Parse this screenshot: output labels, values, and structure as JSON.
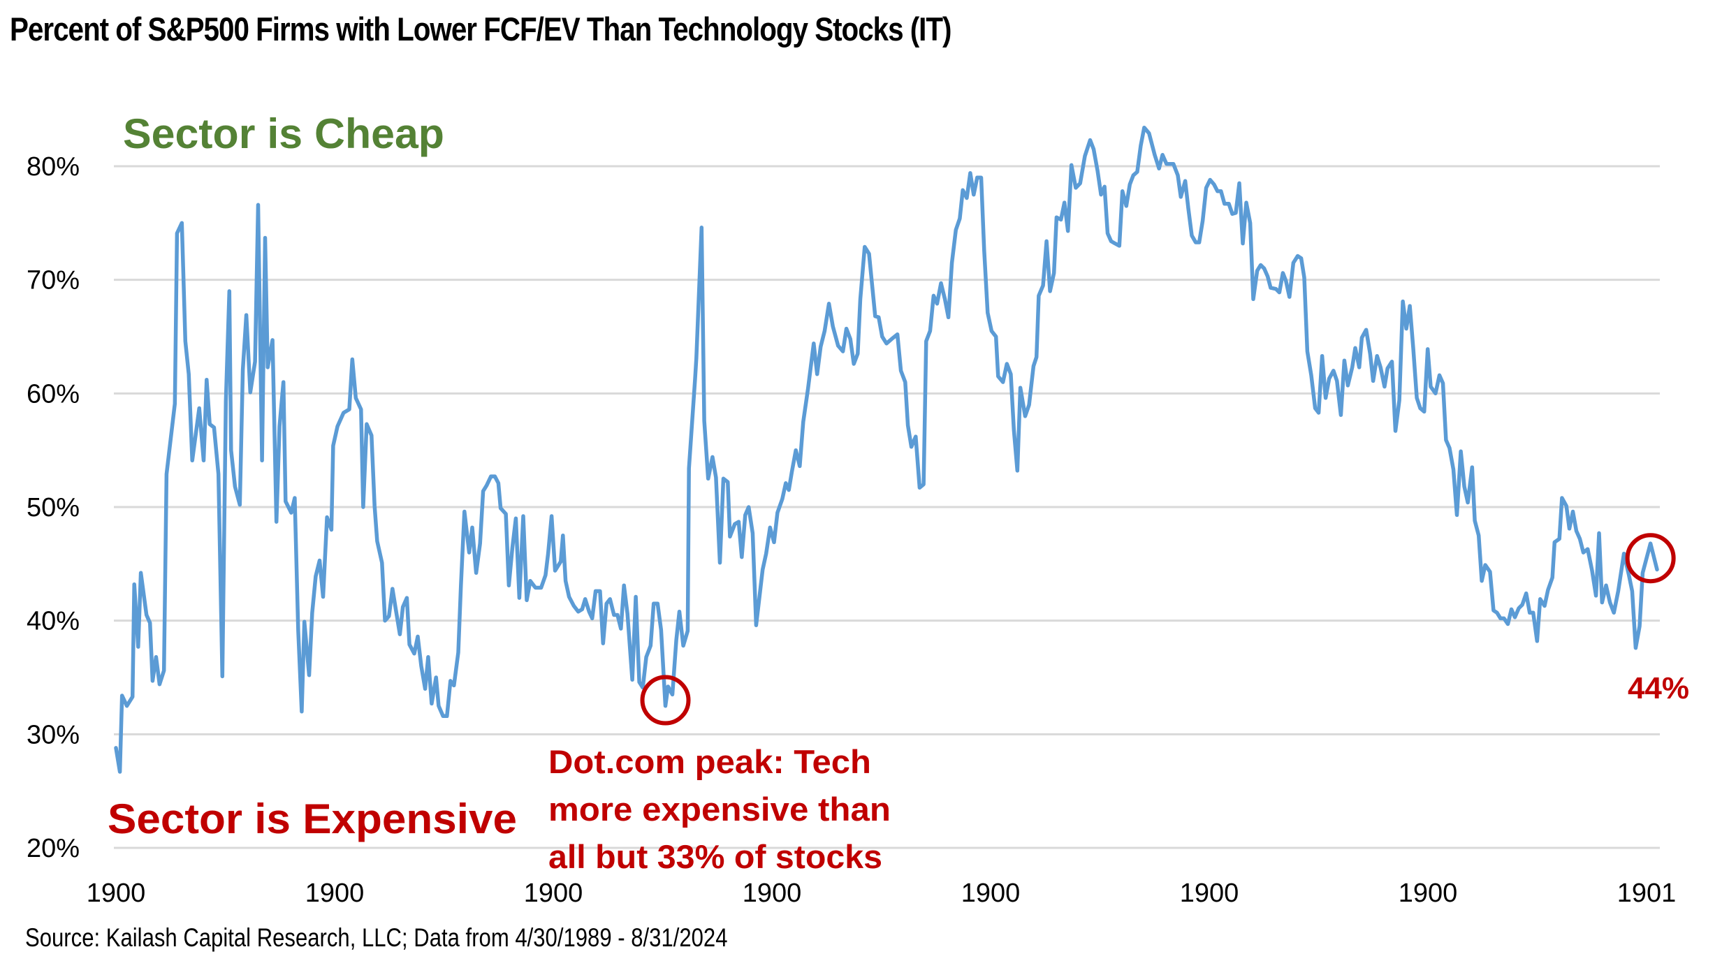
{
  "chart_data": {
    "type": "line",
    "title": "Percent of S&P500 Firms with Lower FCF/EV Than Technology Stocks (IT)",
    "source": "Source: Kailash Capital Research, LLC; Data from 4/30/1989 - 8/31/2024",
    "xlabel": "",
    "ylabel": "",
    "ylim": [
      20,
      80
    ],
    "xlim": [
      1989.33,
      2024.67
    ],
    "yticks": [
      20,
      30,
      40,
      50,
      60,
      70,
      80
    ],
    "ytick_labels": [
      "20%",
      "30%",
      "40%",
      "50%",
      "60%",
      "70%",
      "80%"
    ],
    "xtick_labels": [
      "1900",
      "1900",
      "1900",
      "1900",
      "1900",
      "1900",
      "1900",
      "1901"
    ],
    "grid": "horizontal",
    "legend": "none",
    "series": [
      {
        "name": "Percent of S&P500 firms with lower FCF/EV than IT",
        "color": "#5B9BD5",
        "x": [
          1989.33,
          1989.42,
          1989.47,
          1989.58,
          1989.71,
          1989.75,
          1989.84,
          1989.9,
          1990.03,
          1990.11,
          1990.17,
          1990.25,
          1990.33,
          1990.43,
          1990.49,
          1990.68,
          1990.73,
          1990.84,
          1990.92,
          1991.0,
          1991.08,
          1991.24,
          1991.34,
          1991.41,
          1991.48,
          1991.58,
          1991.68,
          1991.77,
          1991.85,
          1991.93,
          1991.97,
          1992.06,
          1992.17,
          1992.24,
          1992.32,
          1992.41,
          1992.52,
          1992.59,
          1992.68,
          1992.75,
          1992.81,
          1992.92,
          1993.01,
          1993.08,
          1993.17,
          1993.22,
          1993.35,
          1993.43,
          1993.51,
          1993.59,
          1993.65,
          1993.76,
          1993.83,
          1993.91,
          1994.0,
          1994.08,
          1994.17,
          1994.27,
          1994.31,
          1994.41,
          1994.55,
          1994.68,
          1994.75,
          1994.83,
          1994.95,
          1995.0,
          1995.08,
          1995.19,
          1995.26,
          1995.32,
          1995.43,
          1995.5,
          1995.59,
          1995.67,
          1995.75,
          1995.84,
          1995.91,
          1996.0,
          1996.06,
          1996.17,
          1996.25,
          1996.33,
          1996.42,
          1996.49,
          1996.57,
          1996.67,
          1996.73,
          1996.83,
          1996.92,
          1997.0,
          1997.08,
          1997.18,
          1997.24,
          1997.32,
          1997.43,
          1997.5,
          1997.59,
          1997.68,
          1997.75,
          1997.83,
          1997.93,
          1998.02,
          1998.1,
          1998.15,
          1998.27,
          1998.34,
          1998.42,
          1998.5,
          1998.58,
          1998.67,
          1998.75,
          1998.83,
          1998.95,
          1999.08,
          1999.18,
          1999.24,
          1999.32,
          1999.4,
          1999.53,
          1999.58,
          1999.64,
          1999.72,
          1999.83,
          1999.93,
          2000.02,
          2000.09,
          2000.18,
          2000.25,
          2000.33,
          2000.43,
          2000.5,
          2000.58,
          2000.66,
          2000.75,
          2000.83,
          2000.91,
          2000.98,
          2001.06,
          2001.17,
          2001.25,
          2001.33,
          2001.41,
          2001.49,
          2001.59,
          2001.66,
          2001.75,
          2001.83,
          2001.93,
          2001.99,
          2002.09,
          2002.18,
          2002.25,
          2002.34,
          2002.44,
          2002.47,
          2002.61,
          2002.64,
          2002.76,
          2002.82,
          2002.91,
          2003.01,
          2003.09,
          2003.18,
          2003.26,
          2003.36,
          2003.41,
          2003.52,
          2003.61,
          2003.68,
          2003.76,
          2003.84,
          2003.93,
          2004.01,
          2004.16,
          2004.24,
          2004.33,
          2004.42,
          2004.5,
          2004.61,
          2004.69,
          2004.76,
          2004.83,
          2004.92,
          2005.01,
          2005.09,
          2005.2,
          2005.33,
          2005.41,
          2005.49,
          2005.58,
          2005.68,
          2005.77,
          2005.89,
          2006.0,
          2006.08,
          2006.17,
          2006.25,
          2006.34,
          2006.4,
          2006.5,
          2006.6,
          2006.74,
          2006.82,
          2006.9,
          2007.0,
          2007.12,
          2007.25,
          2007.33,
          2007.43,
          2007.49,
          2007.57,
          2007.67,
          2007.76,
          2007.85,
          2007.91,
          2008.0,
          2008.08,
          2008.16,
          2008.25,
          2008.34,
          2008.42,
          2008.5,
          2008.59,
          2008.68,
          2008.75,
          2008.84,
          2008.92,
          2009.0,
          2009.08,
          2009.17,
          2009.24,
          2009.32,
          2009.41,
          2009.51,
          2009.56,
          2009.67,
          2009.76,
          2009.85,
          2009.92,
          2010.0,
          2010.07,
          2010.18,
          2010.27,
          2010.37,
          2010.44,
          2010.49,
          2010.59,
          2010.67,
          2010.75,
          2010.84,
          2010.9,
          2011.0,
          2011.08,
          2011.16,
          2011.24,
          2011.34,
          2011.44,
          2011.55,
          2011.67,
          2011.75,
          2011.84,
          2011.92,
          2012.0,
          2012.07,
          2012.15,
          2012.24,
          2012.34,
          2012.41,
          2012.5,
          2012.58,
          2012.66,
          2012.75,
          2012.83,
          2012.91,
          2013.02,
          2013.15,
          2013.25,
          2013.33,
          2013.42,
          2013.58,
          2013.68,
          2013.75,
          2013.85,
          2013.92,
          2014.0,
          2014.09,
          2014.17,
          2014.25,
          2014.33,
          2014.42,
          2014.51,
          2014.59,
          2014.67,
          2014.75,
          2014.85,
          2014.93,
          2015.01,
          2015.09,
          2015.17,
          2015.25,
          2015.34,
          2015.41,
          2015.5,
          2015.58,
          2015.66,
          2015.74,
          2015.81,
          2015.93,
          2016.01,
          2016.09,
          2016.16,
          2016.24,
          2016.33,
          2016.43,
          2016.51,
          2016.58,
          2016.65,
          2016.74,
          2016.83,
          2016.91,
          2016.99,
          2017.07,
          2017.15,
          2017.25,
          2017.33,
          2017.42,
          2017.5,
          2017.58,
          2017.68,
          2017.75,
          2017.84,
          2017.9,
          2018.0,
          2018.09,
          2018.16,
          2018.25,
          2018.33,
          2018.42,
          2018.49,
          2018.59,
          2018.67,
          2018.76,
          2018.84,
          2018.92,
          2019.0,
          2019.08,
          2019.16,
          2019.24,
          2019.33,
          2019.41,
          2019.48,
          2019.59,
          2019.68,
          2019.76,
          2019.83,
          2019.91,
          2020.0,
          2020.08,
          2020.17,
          2020.25,
          2020.33,
          2020.43,
          2020.49,
          2020.58,
          2020.65,
          2020.73,
          2020.84,
          2020.92,
          2021.0,
          2021.08,
          2021.16,
          2021.25,
          2021.33,
          2021.41,
          2021.5,
          2021.58,
          2021.67,
          2021.75,
          2021.83,
          2021.92,
          2021.99,
          2022.09,
          2022.17,
          2022.27,
          2022.32,
          2022.43,
          2022.49,
          2022.59,
          2022.66,
          2022.74,
          2022.82,
          2022.9,
          2022.98,
          2023.08,
          2023.18,
          2023.27,
          2023.34,
          2023.41,
          2023.5,
          2023.59,
          2023.68,
          2023.78,
          2023.91,
          2024.02,
          2024.1,
          2024.18,
          2024.27,
          2024.34,
          2024.52,
          2024.67
        ],
        "values": [
          28.8,
          26.7,
          33.4,
          32.5,
          33.3,
          43.2,
          37.7,
          44.2,
          40.5,
          39.8,
          34.7,
          36.8,
          34.4,
          35.6,
          52.9,
          59.1,
          74.1,
          75.0,
          64.6,
          61.7,
          54.1,
          58.7,
          54.1,
          61.2,
          57.3,
          57.0,
          52.9,
          35.1,
          59.3,
          69.0,
          55.0,
          51.8,
          50.2,
          62.1,
          66.9,
          60.1,
          62.8,
          76.6,
          54.1,
          73.7,
          62.3,
          64.7,
          48.7,
          57.1,
          61.0,
          50.5,
          49.5,
          50.8,
          39.1,
          32.0,
          39.9,
          35.2,
          40.7,
          43.9,
          45.3,
          42.1,
          49.1,
          48.0,
          55.4,
          57.1,
          58.3,
          58.6,
          63.0,
          59.6,
          58.6,
          50.0,
          57.3,
          56.3,
          50.1,
          47.0,
          45.1,
          40.0,
          40.4,
          42.8,
          40.9,
          38.8,
          41.2,
          42.0,
          37.9,
          37.1,
          38.6,
          36.0,
          34.0,
          36.8,
          32.7,
          35.0,
          32.5,
          31.6,
          31.6,
          34.7,
          34.3,
          37.2,
          43.1,
          49.6,
          46.0,
          48.2,
          44.2,
          46.8,
          51.4,
          51.9,
          52.7,
          52.7,
          52.1,
          49.9,
          49.4,
          43.1,
          46.4,
          49.0,
          42.0,
          49.2,
          41.8,
          43.5,
          42.9,
          42.9,
          44.0,
          45.9,
          49.2,
          44.4,
          45.2,
          47.5,
          43.5,
          42.1,
          41.3,
          40.8,
          41.0,
          41.9,
          40.8,
          40.2,
          42.6,
          42.6,
          38.0,
          41.5,
          41.9,
          40.5,
          40.5,
          39.3,
          43.1,
          40.6,
          34.8,
          42.1,
          34.6,
          34.1,
          36.8,
          37.8,
          41.5,
          41.5,
          39.2,
          32.5,
          34.2,
          33.5,
          38.3,
          40.8,
          37.8,
          39.1,
          53.4,
          61.3,
          63.1,
          74.6,
          57.6,
          52.5,
          54.4,
          52.6,
          45.1,
          52.5,
          52.2,
          47.4,
          48.5,
          48.7,
          45.6,
          49.3,
          50.0,
          47.7,
          39.6,
          44.5,
          45.9,
          48.2,
          46.9,
          49.5,
          50.7,
          52.1,
          51.5,
          53.1,
          55.0,
          53.6,
          57.5,
          60.4,
          64.4,
          61.7,
          64.1,
          65.5,
          67.9,
          65.9,
          64.2,
          63.7,
          65.7,
          64.8,
          62.6,
          63.5,
          68.3,
          72.9,
          72.3,
          66.8,
          66.7,
          65.0,
          64.4,
          64.8,
          65.2,
          62.0,
          61.0,
          57.2,
          55.3,
          56.2,
          51.7,
          52.0,
          64.6,
          65.5,
          68.6,
          67.9,
          69.7,
          68.3,
          66.7,
          71.5,
          74.4,
          75.4,
          77.9,
          77.2,
          79.4,
          77.5,
          79.0,
          79.0,
          72.6,
          67.1,
          65.5,
          65.0,
          61.5,
          61.0,
          62.6,
          61.7,
          56.8,
          53.2,
          60.5,
          58.0,
          59.0,
          62.4,
          63.2,
          68.6,
          69.5,
          73.4,
          69.0,
          70.6,
          75.5,
          75.3,
          76.8,
          74.3,
          80.1,
          78.1,
          78.5,
          80.9,
          82.3,
          81.5,
          79.6,
          77.5,
          78.2,
          74.1,
          73.4,
          73.2,
          73.0,
          77.8,
          76.5,
          78.4,
          79.2,
          79.5,
          81.8,
          83.4,
          82.9,
          81.0,
          79.8,
          81.0,
          80.2,
          80.2,
          79.2,
          77.3,
          78.7,
          76.3,
          73.9,
          73.3,
          73.3,
          75.2,
          78.1,
          78.8,
          78.4,
          77.8,
          77.8,
          76.7,
          76.7,
          75.8,
          75.9,
          78.5,
          73.2,
          76.8,
          75.0,
          68.3,
          70.8,
          71.3,
          71.0,
          70.3,
          69.3,
          69.2,
          68.9,
          70.6,
          69.9,
          68.5,
          71.5,
          72.1,
          71.9,
          70.2,
          63.7,
          61.6,
          58.7,
          58.3,
          63.3,
          59.6,
          61.3,
          62.0,
          61.1,
          58.1,
          62.9,
          60.7,
          62.3,
          64.0,
          62.3,
          64.9,
          65.6,
          63.5,
          61.1,
          63.3,
          62.3,
          60.6,
          62.2,
          62.8,
          56.7,
          59.4,
          68.1,
          65.7,
          67.7,
          63.9,
          59.6,
          58.7,
          58.4,
          63.9,
          60.6,
          60.0,
          61.6,
          60.9,
          55.9,
          55.2,
          53.3,
          49.3,
          54.9,
          51.8,
          50.4,
          53.5,
          48.8,
          47.5,
          43.5,
          44.9,
          44.3,
          40.9,
          40.7,
          40.2,
          40.2,
          39.7,
          41.0,
          40.3,
          41.1,
          41.4,
          42.4,
          40.7,
          40.7,
          38.2,
          41.9,
          41.3,
          42.7,
          43.8,
          46.9,
          47.2,
          50.8,
          50.1,
          48.1,
          49.6,
          47.9,
          47.2,
          46.0,
          46.3,
          44.4,
          42.2,
          47.7,
          41.6,
          43.1,
          41.6,
          40.7,
          42.6,
          45.9,
          44.1,
          42.6,
          37.6,
          39.5,
          44.2,
          46.8,
          44.5
        ]
      }
    ],
    "annotations": [
      {
        "id": "cheap",
        "text": "Sector is Cheap",
        "color": "#548235",
        "position": "top-left"
      },
      {
        "id": "expensive",
        "text": "Sector is Expensive",
        "color": "#C00000",
        "position": "bottom-left"
      },
      {
        "id": "dotcom",
        "lines": [
          "Dot.com peak: Tech",
          "more expensive than",
          "all but 33% of stocks"
        ],
        "color": "#C00000",
        "circle_at": {
          "x": 2001.93,
          "y": 33.0
        }
      },
      {
        "id": "latest",
        "text": "44%",
        "color": "#C00000",
        "circle_at": {
          "x": 2024.52,
          "y": 45.5
        }
      }
    ]
  }
}
